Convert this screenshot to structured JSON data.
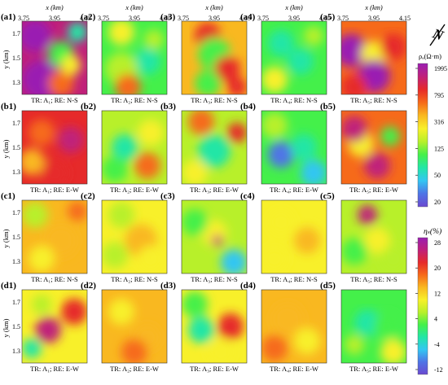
{
  "figure": {
    "panel_ids": [
      [
        "(a1)",
        "(a2)",
        "(a3)",
        "(a4)",
        "(a5)"
      ],
      [
        "(b1)",
        "(b2)",
        "(b3)",
        "(b4)",
        "(b5)"
      ],
      [
        "(c1)",
        "(c2)",
        "(c3)",
        "(c4)",
        "(c5)"
      ],
      [
        "(d1)",
        "(d2)",
        "(d3)",
        "(d4)",
        "(d5)"
      ]
    ],
    "captions": [
      [
        "TR: A₁;  RE: N-S",
        "TR: A₂;  RE: N-S",
        "TR: A₃;  RE: N-S",
        "TR: A₄;  RE: N-S",
        "TR: A₅;  RE: N-S"
      ],
      [
        "TR: A₁;  RE: E-W",
        "TR: A₂;  RE: E-W",
        "TR: A₃;  RE: E-W",
        "TR: A₄;  RE: E-W",
        "TR: A₅;  RE: E-W"
      ],
      [
        "TR: A₁;  RE: N-S",
        "TR: A₂;  RE: N-S",
        "TR: A₃;  RE: N-S",
        "TR: A₄;  RE: N-S",
        "TR: A₅;  RE: N-S"
      ],
      [
        "TR: A₁;  RE: E-W",
        "TR: A₂;  RE: E-W",
        "TR: A₃;  RE: E-W",
        "TR: A₄;  RE: E-W",
        "TR: A₅;  RE: E-W"
      ]
    ],
    "x_axis_label": "x (km)",
    "x_ticks": [
      "3.75",
      "3.95",
      "4.15"
    ],
    "y_axis_label": "y (km)",
    "y_ticks": [
      "1.7",
      "1.5",
      "1.3"
    ],
    "north_symbol": "N"
  },
  "colorbars": {
    "resistivity": {
      "label": "ρₐ(Ω·m)",
      "ticks": [
        "1995",
        "795",
        "316",
        "125",
        "50",
        "20"
      ]
    },
    "polarizability": {
      "label": "ηₛ(%)",
      "ticks": [
        "28",
        "20",
        "12",
        "4",
        "-4",
        "-12"
      ]
    }
  },
  "colors": {
    "scale": [
      "#6a4ad0",
      "#4f74e6",
      "#33c6f2",
      "#22e6a6",
      "#44f04a",
      "#b8f02a",
      "#f8f02a",
      "#f9b820",
      "#f66a1a",
      "#e62a2a",
      "#c0207a",
      "#9a1fb2"
    ]
  }
}
